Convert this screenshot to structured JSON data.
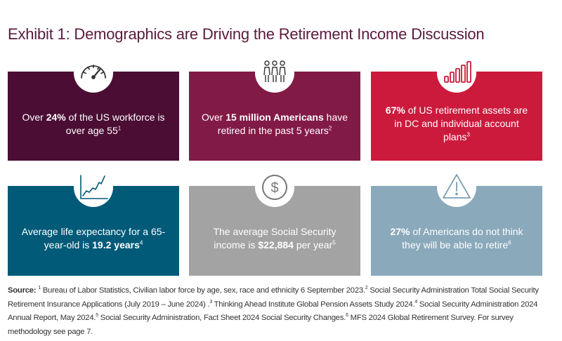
{
  "title": "Exhibit 1: Demographics are Driving the Retirement Income Discussion",
  "colors": {
    "title": "#5b1a3e",
    "tile1": "#4b0d33",
    "tile2": "#821a46",
    "tile3": "#cc1a3d",
    "tile4": "#005a78",
    "tile5": "#a3a3a3",
    "tile6": "#8aa9bb"
  },
  "tiles": [
    {
      "icon": "speedometer-icon",
      "parts": [
        "Over ",
        "24%",
        " of the US workforce is over age 55",
        "1"
      ]
    },
    {
      "icon": "people-group-icon",
      "parts": [
        "Over ",
        "15 million Americans",
        " have retired in the past 5 years",
        "2"
      ]
    },
    {
      "icon": "bar-chart-icon",
      "parts": [
        "67%",
        " of US retirement assets are in DC and individual account plans",
        "3"
      ]
    },
    {
      "icon": "line-chart-icon",
      "parts": [
        "Average life expectancy for a 65-year-old is ",
        "19.2 years",
        "4"
      ]
    },
    {
      "icon": "dollar-coin-icon",
      "parts": [
        "The average Social Security income is ",
        "$22,884",
        " per year",
        "5"
      ]
    },
    {
      "icon": "warning-triangle-icon",
      "parts": [
        "27%",
        " of Americans do not think they will be able to retire",
        "6"
      ]
    }
  ],
  "source": {
    "label": "Source:",
    "notes": [
      {
        "n": "1",
        "text": " Bureau of Labor Statistics, Civilian labor force by age, sex, race and ethnicity 6 September 2023."
      },
      {
        "n": "2",
        "text": " Social Security Administration Total Social Security Retirement Insurance Applications (July 2019 – June 2024) ."
      },
      {
        "n": "3",
        "text": " Thinking Ahead Institute Global Pension Assets Study 2024."
      },
      {
        "n": "4",
        "text": " Social Security Administration 2024 Annual Report, May 2024."
      },
      {
        "n": "5",
        "text": " Social Security Administration, Fact Sheet 2024 Social Security Changes."
      },
      {
        "n": "6",
        "text": " MFS 2024 Global Retirement Survey. For survey methodology see page 7."
      }
    ]
  }
}
